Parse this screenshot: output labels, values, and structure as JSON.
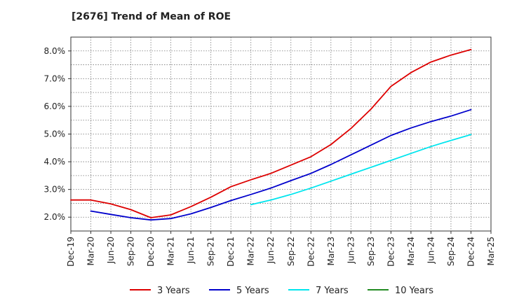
{
  "chart_data": {
    "type": "line",
    "title": "[2676]  Trend of Mean of ROE",
    "xlabel": "",
    "ylabel": "",
    "x_ticks": [
      "Dec-19",
      "Mar-20",
      "Jun-20",
      "Sep-20",
      "Dec-20",
      "Mar-21",
      "Jun-21",
      "Sep-21",
      "Dec-21",
      "Mar-22",
      "Jun-22",
      "Sep-22",
      "Dec-22",
      "Mar-23",
      "Jun-23",
      "Sep-23",
      "Dec-23",
      "Mar-24",
      "Jun-24",
      "Sep-24",
      "Dec-24",
      "Mar-25"
    ],
    "ylim": [
      1.5,
      8.5
    ],
    "y_ticks": [
      2.0,
      3.0,
      4.0,
      5.0,
      6.0,
      7.0,
      8.0
    ],
    "y_tick_labels": [
      "2.0%",
      "3.0%",
      "4.0%",
      "5.0%",
      "6.0%",
      "7.0%",
      "8.0%"
    ],
    "grid": true,
    "legend_position": "bottom",
    "series": [
      {
        "name": "3 Years",
        "color": "#dd0000",
        "x": [
          "Dec-19",
          "Mar-20",
          "Jun-20",
          "Sep-20",
          "Dec-20",
          "Mar-21",
          "Jun-21",
          "Sep-21",
          "Dec-21",
          "Mar-22",
          "Jun-22",
          "Sep-22",
          "Dec-22",
          "Mar-23",
          "Jun-23",
          "Sep-23",
          "Dec-23",
          "Mar-24",
          "Jun-24",
          "Sep-24",
          "Dec-24"
        ],
        "values": [
          2.62,
          2.62,
          2.48,
          2.27,
          1.98,
          2.08,
          2.38,
          2.72,
          3.1,
          3.35,
          3.58,
          3.88,
          4.18,
          4.62,
          5.2,
          5.9,
          6.72,
          7.22,
          7.6,
          7.85,
          8.05
        ]
      },
      {
        "name": "5 Years",
        "color": "#0000cc",
        "x": [
          "Mar-20",
          "Jun-20",
          "Sep-20",
          "Dec-20",
          "Mar-21",
          "Jun-21",
          "Sep-21",
          "Dec-21",
          "Mar-22",
          "Jun-22",
          "Sep-22",
          "Dec-22",
          "Mar-23",
          "Jun-23",
          "Sep-23",
          "Dec-23",
          "Mar-24",
          "Jun-24",
          "Sep-24",
          "Dec-24"
        ],
        "values": [
          2.22,
          2.1,
          1.98,
          1.9,
          1.95,
          2.12,
          2.35,
          2.6,
          2.82,
          3.05,
          3.32,
          3.58,
          3.9,
          4.25,
          4.6,
          4.95,
          5.22,
          5.45,
          5.65,
          5.88
        ]
      },
      {
        "name": "7 Years",
        "color": "#00e5ee",
        "x": [
          "Mar-22",
          "Jun-22",
          "Sep-22",
          "Dec-22",
          "Mar-23",
          "Jun-23",
          "Sep-23",
          "Dec-23",
          "Mar-24",
          "Jun-24",
          "Sep-24",
          "Dec-24"
        ],
        "values": [
          2.45,
          2.62,
          2.82,
          3.05,
          3.3,
          3.55,
          3.8,
          4.05,
          4.3,
          4.55,
          4.77,
          4.98
        ]
      },
      {
        "name": "10 Years",
        "color": "#228b22",
        "x": [],
        "values": []
      }
    ]
  }
}
